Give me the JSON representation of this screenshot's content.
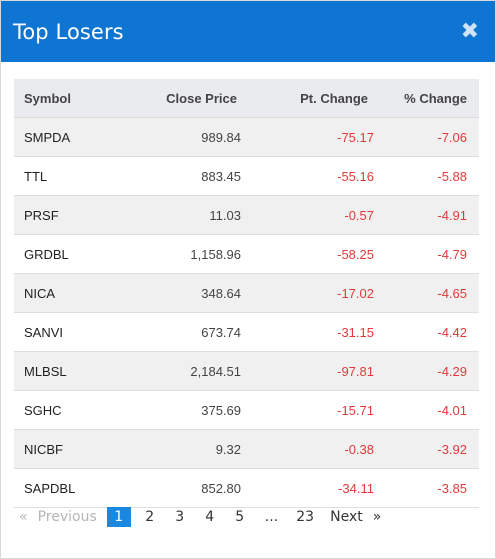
{
  "header": {
    "title": "Top Losers",
    "close_icon": "close-icon"
  },
  "table": {
    "columns": [
      "Symbol",
      "Close Price",
      "Pt. Change",
      "% Change"
    ],
    "rows": [
      [
        "SMPDA",
        "989.84",
        "-75.17",
        "-7.06"
      ],
      [
        "TTL",
        "883.45",
        "-55.16",
        "-5.88"
      ],
      [
        "PRSF",
        "11.03",
        "-0.57",
        "-4.91"
      ],
      [
        "GRDBL",
        "1,158.96",
        "-58.25",
        "-4.79"
      ],
      [
        "NICA",
        "348.64",
        "-17.02",
        "-4.65"
      ],
      [
        "SANVI",
        "673.74",
        "-31.15",
        "-4.42"
      ],
      [
        "MLBSL",
        "2,184.51",
        "-97.81",
        "-4.29"
      ],
      [
        "SGHC",
        "375.69",
        "-15.71",
        "-4.01"
      ],
      [
        "NICBF",
        "9.32",
        "-0.38",
        "-3.92"
      ],
      [
        "SAPDBL",
        "852.80",
        "-34.11",
        "-3.85"
      ]
    ],
    "negative_color": "#e03a3a"
  },
  "pagination": {
    "prev_arrow": "«",
    "prev_label": "Previous",
    "pages": [
      "1",
      "2",
      "3",
      "4",
      "5"
    ],
    "current": "1",
    "ellipsis": "...",
    "last_page": "23",
    "next_label": "Next",
    "next_arrow": "»"
  },
  "colors": {
    "header": "#0f75d2",
    "active_page": "#1a87e0"
  }
}
